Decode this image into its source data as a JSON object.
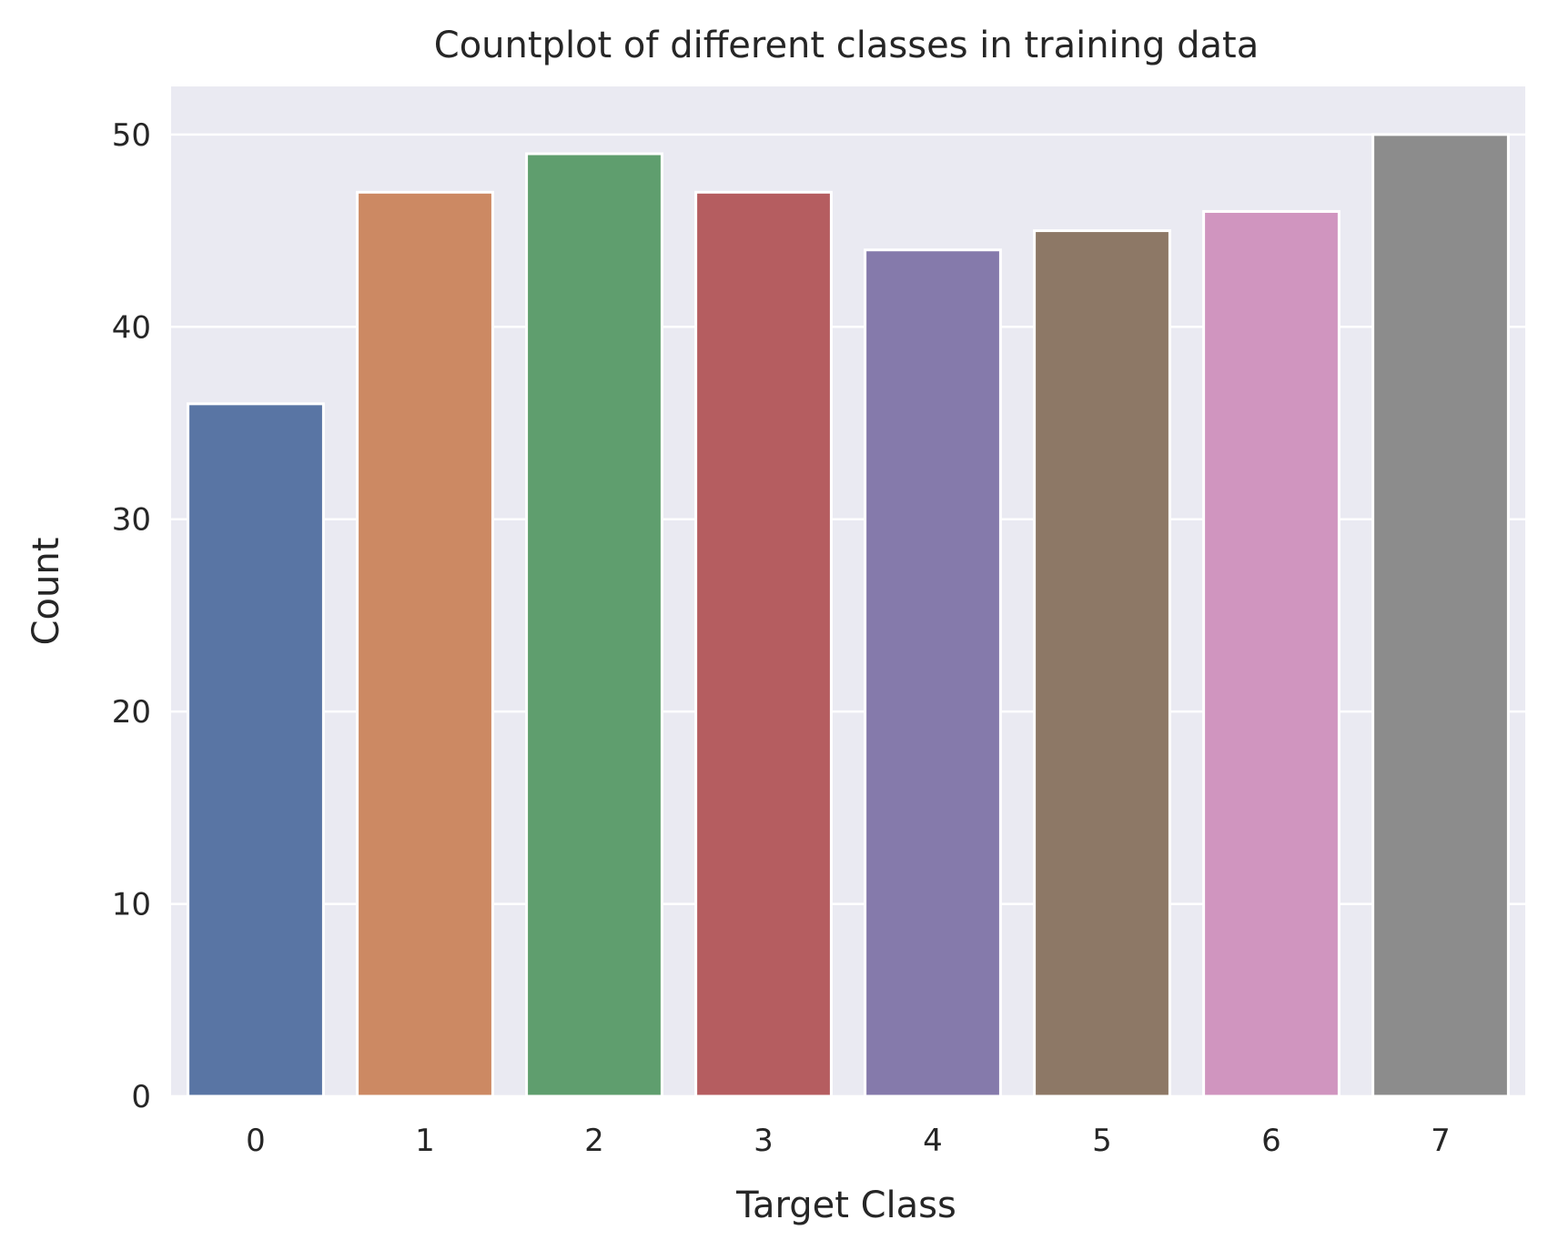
{
  "chart_data": {
    "type": "bar",
    "title": "Countplot of different classes in training data",
    "xlabel": "Target Class",
    "ylabel": "Count",
    "categories": [
      "0",
      "1",
      "2",
      "3",
      "4",
      "5",
      "6",
      "7"
    ],
    "values": [
      36,
      47,
      49,
      47,
      44,
      45,
      46,
      50
    ],
    "colors": [
      "#5975a4",
      "#cc8963",
      "#5f9e6e",
      "#b55d60",
      "#857aab",
      "#8d7866",
      "#d095bf",
      "#8c8c8c"
    ],
    "yticks": [
      0,
      10,
      20,
      30,
      40,
      50
    ],
    "ylim": [
      0,
      52.5
    ],
    "grid": true,
    "background_color": "#eaeaf2",
    "grid_color": "#ffffff"
  }
}
